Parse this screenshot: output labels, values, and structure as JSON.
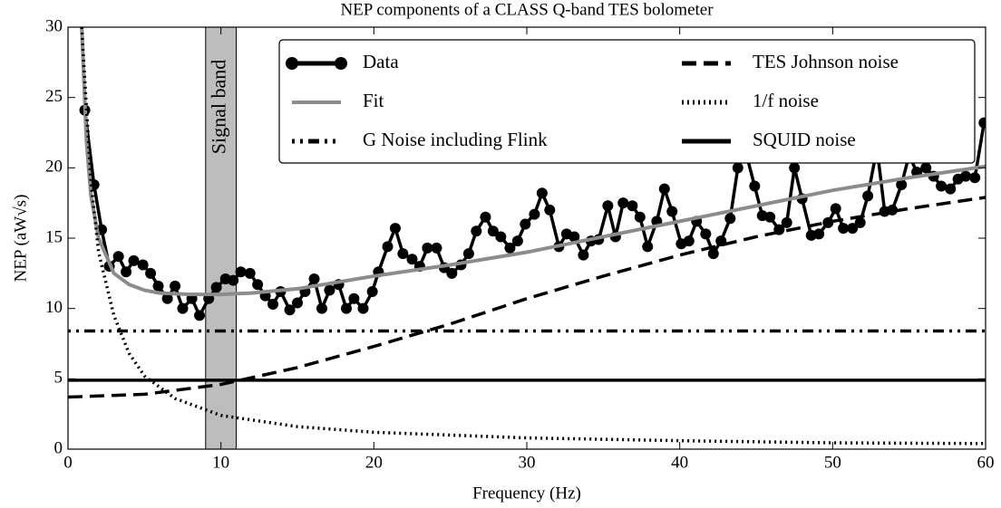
{
  "chart_data": {
    "type": "line",
    "title": "NEP components of a CLASS Q-band TES bolometer",
    "xlabel": "Frequency (Hz)",
    "ylabel": "NEP (aW√s)",
    "xlim": [
      0,
      60
    ],
    "ylim": [
      0,
      30
    ],
    "xticks": [
      0,
      10,
      20,
      30,
      40,
      50,
      60
    ],
    "yticks": [
      0,
      5,
      10,
      15,
      20,
      25,
      30
    ],
    "legend": "upper right",
    "annotations": [
      {
        "text": "Signal band",
        "x": [
          9,
          11
        ],
        "color": "#bdbdbd"
      }
    ],
    "series": [
      {
        "name": "Data",
        "color": "#000000",
        "linestyle": "-",
        "marker": "o",
        "x": [
          1.1,
          1.7,
          2.2,
          2.7,
          3.3,
          3.8,
          4.3,
          4.9,
          5.4,
          5.9,
          6.5,
          7.0,
          7.5,
          8.1,
          8.6,
          9.2,
          9.7,
          10.3,
          10.8,
          11.3,
          11.9,
          12.4,
          12.9,
          13.4,
          13.9,
          14.5,
          15.0,
          15.5,
          16.1,
          16.6,
          17.1,
          17.7,
          18.2,
          18.7,
          19.3,
          19.9,
          20.3,
          20.9,
          21.4,
          21.9,
          22.5,
          23.0,
          23.5,
          24.1,
          24.6,
          25.1,
          25.7,
          26.2,
          26.7,
          27.3,
          27.8,
          28.3,
          28.9,
          29.4,
          29.9,
          30.5,
          31.0,
          31.5,
          32.1,
          32.6,
          33.1,
          33.7,
          34.2,
          34.7,
          35.3,
          35.8,
          36.3,
          36.9,
          37.4,
          37.9,
          38.5,
          39.0,
          39.5,
          40.1,
          40.6,
          41.1,
          41.7,
          42.2,
          42.7,
          43.3,
          43.8,
          44.3,
          44.9,
          45.4,
          45.9,
          46.5,
          47.0,
          47.5,
          48.0,
          48.6,
          49.1,
          49.7,
          50.2,
          50.7,
          51.3,
          51.8,
          52.3,
          52.9,
          53.4,
          53.9,
          54.5,
          55.0,
          55.5,
          56.1,
          56.6,
          57.1,
          57.7,
          58.2,
          58.7,
          59.3,
          59.9
        ],
        "values": [
          24.1,
          18.8,
          15.6,
          13.0,
          13.7,
          12.6,
          13.4,
          13.1,
          12.5,
          11.6,
          10.7,
          11.6,
          10.0,
          10.7,
          9.5,
          10.7,
          11.5,
          12.1,
          12.0,
          12.6,
          12.5,
          11.7,
          10.9,
          10.3,
          11.2,
          9.9,
          10.4,
          11.2,
          12.1,
          10.0,
          11.3,
          11.7,
          10.0,
          10.7,
          10.0,
          11.2,
          12.6,
          14.4,
          15.7,
          13.9,
          13.5,
          13.0,
          14.3,
          14.3,
          12.9,
          12.5,
          13.1,
          13.9,
          15.5,
          16.5,
          15.5,
          15.1,
          14.3,
          14.8,
          16.0,
          16.7,
          18.2,
          17.0,
          14.4,
          15.3,
          15.1,
          13.8,
          14.8,
          14.9,
          17.3,
          15.1,
          17.5,
          17.3,
          16.5,
          14.4,
          16.2,
          18.5,
          16.9,
          14.6,
          14.8,
          16.2,
          15.3,
          13.9,
          14.8,
          16.4,
          20.0,
          21.2,
          18.7,
          16.6,
          16.5,
          15.6,
          16.1,
          20.0,
          17.8,
          15.2,
          15.3,
          16.1,
          17.1,
          15.7,
          15.7,
          16.1,
          18.0,
          21.4,
          16.9,
          17.0,
          18.8,
          20.9,
          19.7,
          20.0,
          19.4,
          18.7,
          18.5,
          19.2,
          19.4,
          19.3,
          23.2
        ]
      },
      {
        "name": "Fit",
        "color": "#8c8c8c",
        "linestyle": "-",
        "x": [
          0.9,
          1.2,
          1.5,
          2,
          3,
          4,
          5,
          6,
          8,
          10,
          12,
          15,
          20,
          25,
          30,
          35,
          40,
          45,
          50,
          55,
          60
        ],
        "values": [
          30,
          22,
          18,
          15,
          12.5,
          11.7,
          11.3,
          11.1,
          11.0,
          11.0,
          11.1,
          11.4,
          12.3,
          13.1,
          14.0,
          15.1,
          16.2,
          17.3,
          18.4,
          19.3,
          20.1
        ]
      },
      {
        "name": "G Noise including Flink",
        "color": "#000000",
        "linestyle": "-.",
        "x": [
          0,
          60
        ],
        "values": [
          8.4,
          8.4
        ]
      },
      {
        "name": "TES Johnson noise",
        "color": "#000000",
        "linestyle": "--",
        "x": [
          0,
          5,
          10,
          15,
          20,
          25,
          30,
          35,
          40,
          45,
          50,
          55,
          60
        ],
        "values": [
          3.7,
          3.9,
          4.6,
          5.8,
          7.3,
          8.9,
          10.7,
          12.3,
          13.8,
          15.1,
          16.2,
          17.1,
          17.9
        ]
      },
      {
        "name": "1/f noise",
        "color": "#000000",
        "linestyle": ":",
        "x": [
          0.9,
          1,
          1.5,
          2,
          3,
          4,
          5,
          7,
          10,
          15,
          20,
          30,
          40,
          50,
          60
        ],
        "values": [
          30,
          28,
          19,
          14,
          9.5,
          6.8,
          5.2,
          3.6,
          2.4,
          1.6,
          1.2,
          0.8,
          0.6,
          0.45,
          0.4
        ]
      },
      {
        "name": "SQUID noise",
        "color": "#000000",
        "linestyle": "-",
        "x": [
          0,
          60
        ],
        "values": [
          4.9,
          4.9
        ]
      }
    ]
  }
}
